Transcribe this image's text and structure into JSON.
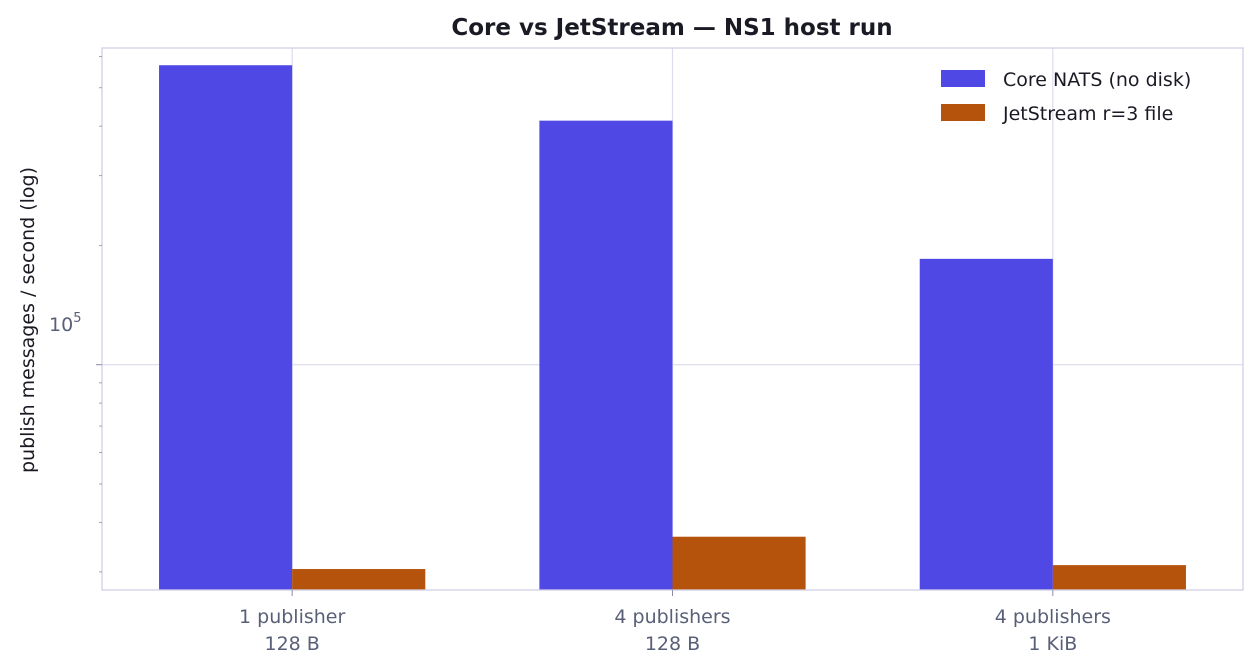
{
  "chart_data": {
    "type": "bar",
    "title": "Core vs JetStream — NS1 host run",
    "xlabel": "",
    "ylabel": "publish messages / second (log)",
    "yscale": "log",
    "ylim": [
      27000,
      630000
    ],
    "ytick_label": {
      "base": "10",
      "exponent": "5"
    },
    "categories": [
      {
        "line1": "1 publisher",
        "line2": "128 B"
      },
      {
        "line1": "4 publishers",
        "line2": "128 B"
      },
      {
        "line1": "4 publishers",
        "line2": "1 KiB"
      }
    ],
    "series": [
      {
        "name": "Core NATS (no disk)",
        "color": "#5048e5",
        "values": [
          570000,
          413000,
          185000
        ]
      },
      {
        "name": "JetStream r=3 file",
        "color": "#b5530c",
        "values": [
          30500,
          36800,
          31200
        ]
      }
    ],
    "grid": true,
    "legend": "top-right"
  }
}
